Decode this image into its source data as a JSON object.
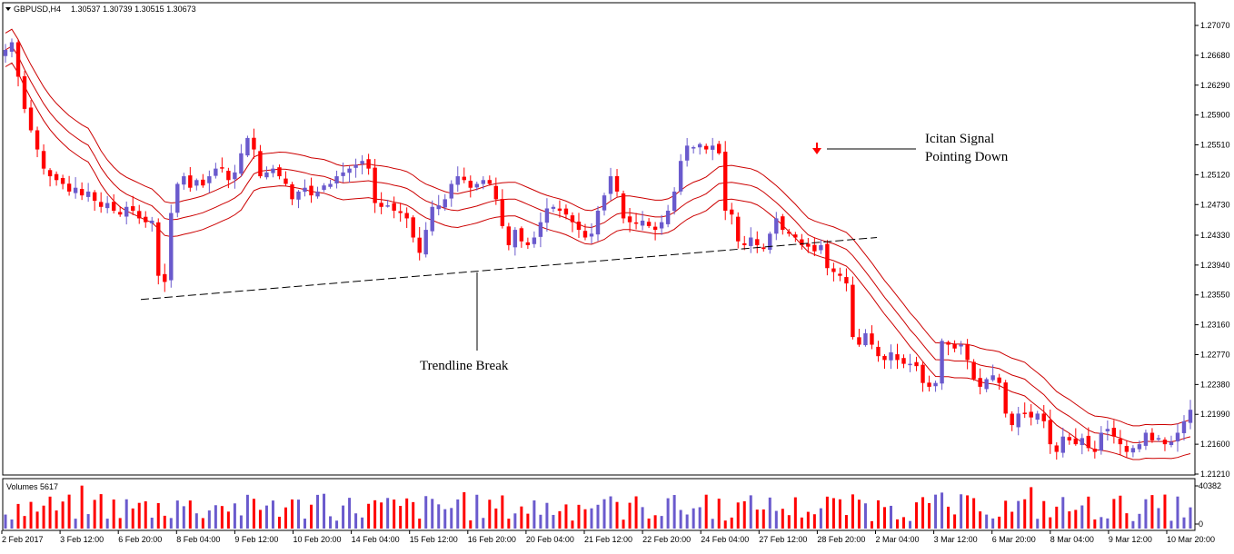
{
  "header": {
    "symbol": "GBPUSD,H4",
    "ohlc": "1.30537 1.30739 1.30515 1.30673"
  },
  "colors": {
    "bull": "#6a5acd",
    "bear": "#ff0000",
    "band": "#cc0000",
    "signal": "#ff0000",
    "grid_frame": "#000000"
  },
  "chart_data": [
    {
      "type": "candlestick",
      "title": "GBPUSD,H4",
      "y_ticks": [
        "1.27070",
        "1.26680",
        "1.26290",
        "1.25900",
        "1.25510",
        "1.25120",
        "1.24730",
        "1.24330",
        "1.23940",
        "1.23550",
        "1.23160",
        "1.22770",
        "1.22380",
        "1.21990",
        "1.21600",
        "1.21210"
      ],
      "ylim": [
        1.2121,
        1.2707
      ],
      "x_ticks": [
        "2 Feb 2017",
        "3 Feb 12:00",
        "6 Feb 20:00",
        "8 Feb 04:00",
        "9 Feb 12:00",
        "10 Feb 20:00",
        "14 Feb 04:00",
        "15 Feb 12:00",
        "16 Feb 20:00",
        "20 Feb 04:00",
        "21 Feb 12:00",
        "22 Feb 20:00",
        "24 Feb 04:00",
        "27 Feb 12:00",
        "28 Feb 20:00",
        "2 Mar 04:00",
        "3 Mar 12:00",
        "6 Mar 20:00",
        "8 Mar 04:00",
        "9 Mar 12:00",
        "10 Mar 20:00"
      ],
      "close_path": [
        [
          0,
          1.2675
        ],
        [
          1,
          1.2685
        ],
        [
          2,
          1.264
        ],
        [
          3,
          1.2598
        ],
        [
          4,
          1.257
        ],
        [
          5,
          1.2545
        ],
        [
          6,
          1.252
        ],
        [
          7,
          1.251
        ],
        [
          8,
          1.2505
        ],
        [
          9,
          1.25
        ],
        [
          10,
          1.249
        ],
        [
          11,
          1.2495
        ],
        [
          12,
          1.2485
        ],
        [
          13,
          1.249
        ],
        [
          14,
          1.2478
        ],
        [
          15,
          1.247
        ],
        [
          16,
          1.2475
        ],
        [
          17,
          1.2465
        ],
        [
          18,
          1.246
        ],
        [
          19,
          1.247
        ],
        [
          20,
          1.2465
        ],
        [
          21,
          1.2455
        ],
        [
          22,
          1.245
        ],
        [
          23,
          1.2452
        ],
        [
          24,
          1.238
        ],
        [
          25,
          1.2372
        ],
        [
          26,
          1.2462
        ],
        [
          27,
          1.25
        ],
        [
          28,
          1.251
        ],
        [
          29,
          1.2495
        ],
        [
          30,
          1.2505
        ],
        [
          31,
          1.2498
        ],
        [
          32,
          1.251
        ],
        [
          33,
          1.252
        ],
        [
          34,
          1.252
        ],
        [
          35,
          1.2505
        ],
        [
          36,
          1.2515
        ],
        [
          37,
          1.254
        ],
        [
          38,
          1.256
        ],
        [
          39,
          1.2545
        ],
        [
          40,
          1.251
        ],
        [
          41,
          1.2515
        ],
        [
          42,
          1.252
        ],
        [
          43,
          1.251
        ],
        [
          44,
          1.25
        ],
        [
          45,
          1.248
        ],
        [
          46,
          1.249
        ],
        [
          47,
          1.2495
        ],
        [
          48,
          1.2485
        ],
        [
          49,
          1.249
        ],
        [
          50,
          1.2498
        ],
        [
          51,
          1.25
        ],
        [
          52,
          1.251
        ],
        [
          53,
          1.2515
        ],
        [
          54,
          1.252
        ],
        [
          55,
          1.2525
        ],
        [
          56,
          1.253
        ],
        [
          57,
          1.252
        ],
        [
          58,
          1.2475
        ],
        [
          59,
          1.247
        ],
        [
          60,
          1.2472
        ],
        [
          61,
          1.2465
        ],
        [
          62,
          1.2462
        ],
        [
          63,
          1.2455
        ],
        [
          64,
          1.243
        ],
        [
          65,
          1.241
        ],
        [
          66,
          1.244
        ],
        [
          67,
          1.247
        ],
        [
          68,
          1.2472
        ],
        [
          69,
          1.248
        ],
        [
          70,
          1.25
        ],
        [
          71,
          1.251
        ],
        [
          72,
          1.2505
        ],
        [
          73,
          1.2495
        ],
        [
          74,
          1.25
        ],
        [
          75,
          1.2505
        ],
        [
          76,
          1.25
        ],
        [
          77,
          1.248
        ],
        [
          78,
          1.2445
        ],
        [
          79,
          1.242
        ],
        [
          80,
          1.244
        ],
        [
          81,
          1.2425
        ],
        [
          82,
          1.242
        ],
        [
          83,
          1.243
        ],
        [
          84,
          1.245
        ],
        [
          85,
          1.2468
        ],
        [
          86,
          1.247
        ],
        [
          87,
          1.2465
        ],
        [
          88,
          1.246
        ],
        [
          89,
          1.245
        ],
        [
          90,
          1.244
        ],
        [
          91,
          1.243
        ],
        [
          92,
          1.2435
        ],
        [
          93,
          1.2465
        ],
        [
          94,
          1.2485
        ],
        [
          95,
          1.251
        ],
        [
          96,
          1.249
        ],
        [
          97,
          1.2455
        ],
        [
          98,
          1.245
        ],
        [
          99,
          1.2448
        ],
        [
          100,
          1.2452
        ],
        [
          101,
          1.2445
        ],
        [
          102,
          1.244
        ],
        [
          103,
          1.245
        ],
        [
          104,
          1.2465
        ],
        [
          105,
          1.249
        ],
        [
          106,
          1.253
        ],
        [
          107,
          1.255
        ],
        [
          108,
          1.2548
        ],
        [
          109,
          1.2552
        ],
        [
          110,
          1.2545
        ],
        [
          111,
          1.255
        ],
        [
          112,
          1.254
        ],
        [
          113,
          1.2465
        ],
        [
          114,
          1.246
        ],
        [
          115,
          1.2425
        ],
        [
          116,
          1.242
        ],
        [
          117,
          1.243
        ],
        [
          118,
          1.242
        ],
        [
          119,
          1.2415
        ],
        [
          120,
          1.2435
        ],
        [
          121,
          1.2455
        ],
        [
          122,
          1.244
        ],
        [
          123,
          1.2435
        ],
        [
          124,
          1.243
        ],
        [
          125,
          1.242
        ],
        [
          126,
          1.2418
        ],
        [
          127,
          1.2412
        ],
        [
          128,
          1.242
        ],
        [
          129,
          1.239
        ],
        [
          130,
          1.2385
        ],
        [
          131,
          1.238
        ],
        [
          132,
          1.237
        ],
        [
          133,
          1.23
        ],
        [
          134,
          1.229
        ],
        [
          135,
          1.2305
        ],
        [
          136,
          1.229
        ],
        [
          137,
          1.2275
        ],
        [
          138,
          1.227
        ],
        [
          139,
          1.228
        ],
        [
          140,
          1.227
        ],
        [
          141,
          1.2265
        ],
        [
          142,
          1.2265
        ],
        [
          143,
          1.2262
        ],
        [
          144,
          1.224
        ],
        [
          145,
          1.2235
        ],
        [
          146,
          1.224
        ],
        [
          147,
          1.2295
        ],
        [
          148,
          1.229
        ],
        [
          149,
          1.2285
        ],
        [
          150,
          1.229
        ],
        [
          151,
          1.227
        ],
        [
          152,
          1.2245
        ],
        [
          153,
          1.2235
        ],
        [
          154,
          1.2245
        ],
        [
          155,
          1.225
        ],
        [
          156,
          1.224
        ],
        [
          157,
          1.22
        ],
        [
          158,
          1.2185
        ],
        [
          159,
          1.22
        ],
        [
          160,
          1.22
        ],
        [
          161,
          1.2195
        ],
        [
          162,
          1.22
        ],
        [
          163,
          1.219
        ],
        [
          164,
          1.216
        ],
        [
          165,
          1.215
        ],
        [
          166,
          1.217
        ],
        [
          167,
          1.2165
        ],
        [
          168,
          1.216
        ],
        [
          169,
          1.2168
        ],
        [
          170,
          1.2155
        ],
        [
          171,
          1.215
        ],
        [
          172,
          1.2175
        ],
        [
          173,
          1.218
        ],
        [
          174,
          1.217
        ],
        [
          175,
          1.216
        ],
        [
          176,
          1.215
        ],
        [
          177,
          1.2155
        ],
        [
          178,
          1.216
        ],
        [
          179,
          1.2175
        ],
        [
          180,
          1.2165
        ],
        [
          181,
          1.2168
        ],
        [
          182,
          1.216
        ],
        [
          183,
          1.2163
        ],
        [
          184,
          1.2175
        ],
        [
          185,
          1.219
        ],
        [
          186,
          1.2205
        ]
      ],
      "bands_note": "three moving-average envelope lines around price"
    },
    {
      "type": "bar",
      "title": "Volumes 5617",
      "y_ticks": [
        "40382",
        "0"
      ],
      "ylim": [
        0,
        40382
      ]
    }
  ],
  "annotations": {
    "trendline_label": "Trendline Break",
    "signal_label_line1": "Icitan Signal",
    "signal_label_line2": "Pointing Down",
    "trendline_start_price": 1.2349,
    "trendline_end_price": 1.243
  }
}
